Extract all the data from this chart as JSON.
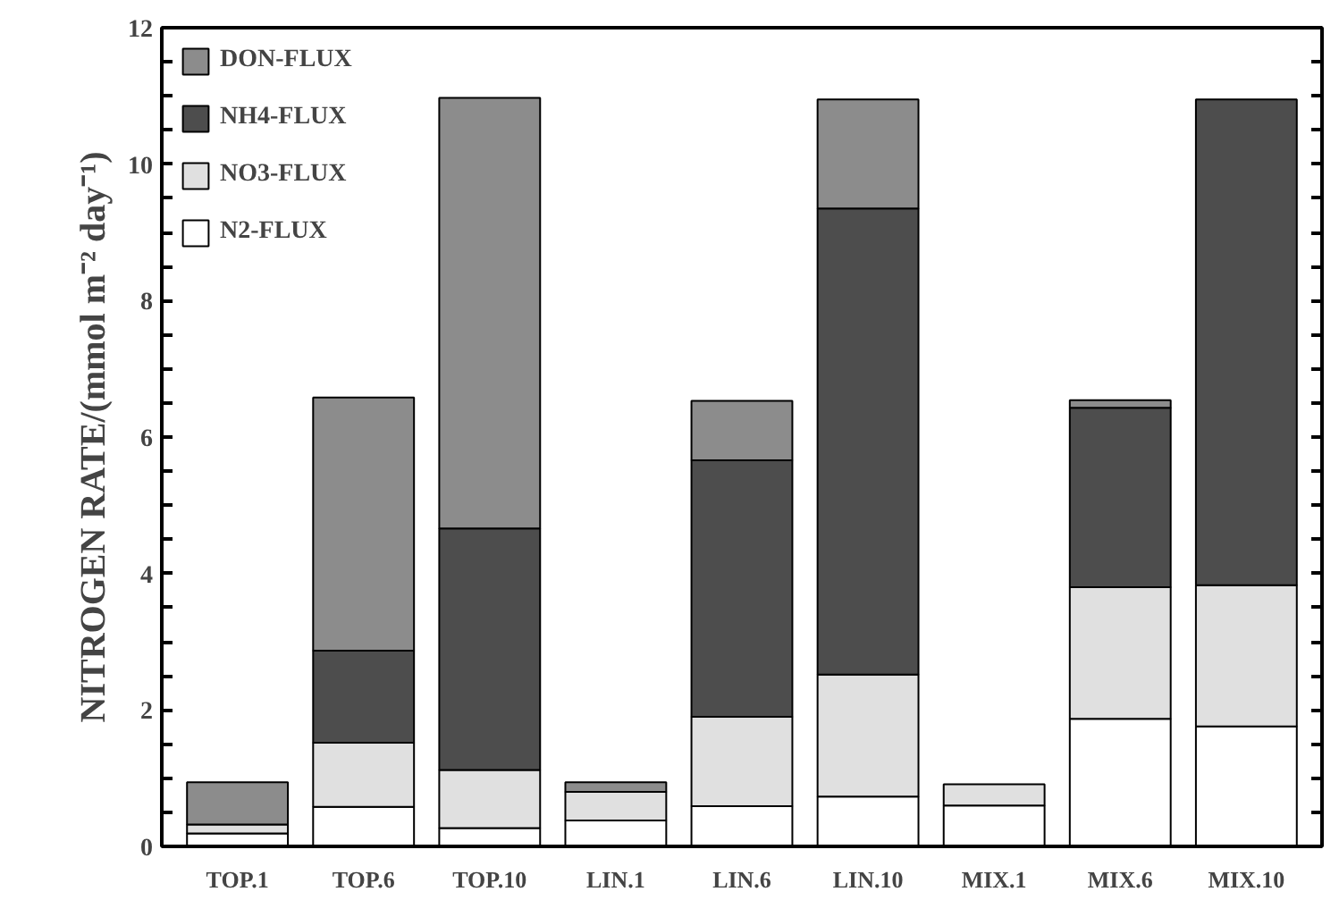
{
  "chart_data": {
    "type": "bar",
    "stacked": true,
    "ylabel": "NITROGEN RATE/(mmol m⁻² day⁻¹)",
    "categories": [
      "TOP.1",
      "TOP.6",
      "TOP.10",
      "LIN.1",
      "LIN.6",
      "LIN.10",
      "MIX.1",
      "MIX.6",
      "MIX.10"
    ],
    "series": [
      {
        "name": "N2-FLUX",
        "color": "#ffffff",
        "values": [
          0.19,
          0.58,
          0.27,
          0.38,
          0.59,
          0.73,
          0.6,
          1.87,
          1.76
        ]
      },
      {
        "name": "NO3-FLUX",
        "color": "#e0e0e0",
        "values": [
          0.13,
          0.94,
          0.85,
          0.42,
          1.31,
          1.79,
          0.31,
          1.93,
          2.07
        ]
      },
      {
        "name": "NH4-FLUX",
        "color": "#4d4d4d",
        "values": [
          null,
          1.35,
          3.54,
          null,
          3.76,
          6.83,
          null,
          2.63,
          7.12
        ]
      },
      {
        "name": "DON-FLUX",
        "color": "#8c8c8c",
        "values": [
          0.62,
          3.71,
          6.31,
          0.14,
          0.87,
          1.6,
          null,
          0.11,
          null
        ]
      }
    ],
    "ylim": [
      0,
      12
    ],
    "yticks": [
      0,
      {
        "value": 0.5,
        "label": null
      },
      {
        "value": 1,
        "label": null
      },
      {
        "value": 1.5,
        "label": null
      },
      2,
      {
        "value": 2.5,
        "label": null
      },
      {
        "value": 3,
        "label": null
      },
      {
        "value": 3.5,
        "label": null
      },
      4,
      {
        "value": 4.5,
        "label": null
      },
      {
        "value": 5,
        "label": null
      },
      {
        "value": 5.5,
        "label": null
      },
      6,
      {
        "value": 6.5,
        "label": null
      },
      {
        "value": 7,
        "label": null
      },
      {
        "value": 7.5,
        "label": null
      },
      8,
      {
        "value": 8.5,
        "label": null
      },
      {
        "value": 9,
        "label": null
      },
      {
        "value": 9.5,
        "label": null
      },
      10,
      {
        "value": 10.5,
        "label": null
      },
      {
        "value": 11,
        "label": null
      },
      {
        "value": 11.5,
        "label": null
      },
      12
    ],
    "grid": false,
    "legend": "top left"
  }
}
